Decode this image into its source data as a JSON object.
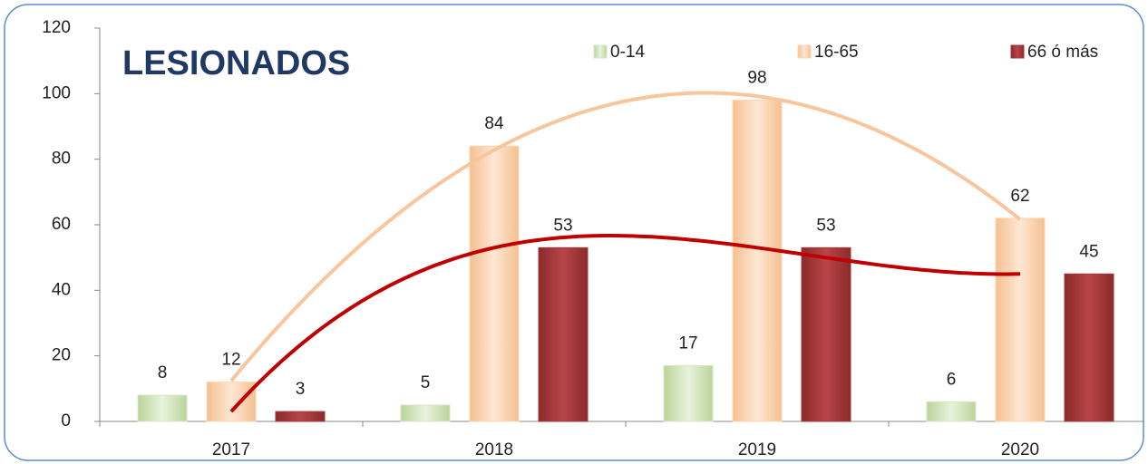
{
  "chart_data": {
    "type": "bar",
    "title": "LESIONADOS",
    "categories": [
      "2017",
      "2018",
      "2019",
      "2020"
    ],
    "series": [
      {
        "name": "0-14",
        "color": "#d7e8c2",
        "values": [
          8,
          5,
          17,
          6
        ]
      },
      {
        "name": "16-65",
        "color": "#fbd6b3",
        "values": [
          12,
          84,
          98,
          62
        ]
      },
      {
        "name": "66 ó más",
        "color": "#a3383a",
        "values": [
          3,
          53,
          53,
          45
        ]
      }
    ],
    "trendlines": [
      {
        "series": 1,
        "order": 2,
        "color": "#f9c59d"
      },
      {
        "series": 2,
        "order": 3,
        "color": "#c00000"
      }
    ],
    "ylim": [
      0,
      120
    ],
    "yticks": [
      0,
      20,
      40,
      60,
      80,
      100,
      120
    ],
    "legend": "top",
    "grid": false
  }
}
